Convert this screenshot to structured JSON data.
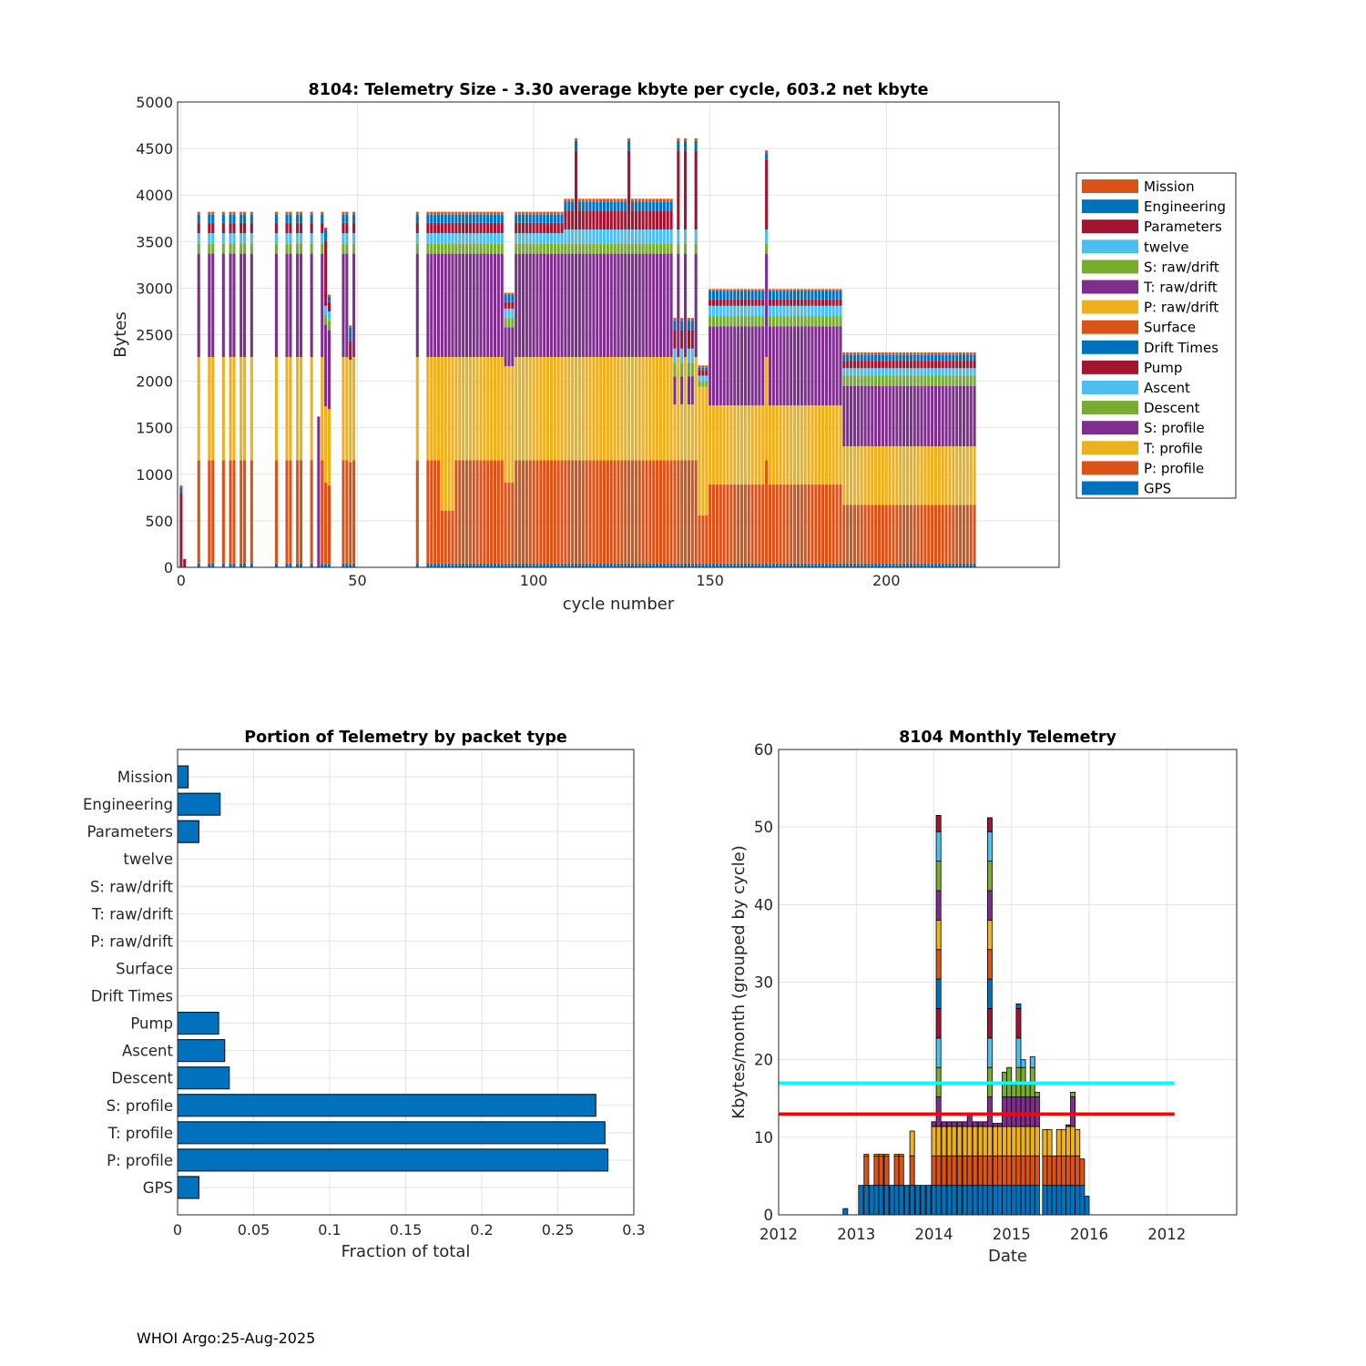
{
  "footer": "WHOI Argo:25-Aug-2025",
  "chart_data": [
    {
      "type": "bar",
      "stacked": true,
      "title": "8104: Telemetry Size - 3.30 average kbyte per cycle,  603.2 net kbyte",
      "xlabel": "cycle number",
      "ylabel": "Bytes",
      "xlim": [
        -1,
        249
      ],
      "ylim": [
        0,
        5000
      ],
      "xticks": [
        0,
        50,
        100,
        150,
        200
      ],
      "yticks": [
        0,
        500,
        1000,
        1500,
        2000,
        2500,
        3000,
        3500,
        4000,
        4500,
        5000
      ],
      "grid": true,
      "legend_position": "right",
      "legend": [
        "Mission",
        "Engineering",
        "Parameters",
        "twelve",
        "S: raw/drift",
        "T: raw/drift",
        "P: raw/drift",
        "Surface",
        "Drift Times",
        "Pump",
        "Ascent",
        "Descent",
        "S: profile",
        "T: profile",
        "P: profile",
        "GPS"
      ],
      "colors": {
        "GPS": "#0072bd",
        "P: profile": "#d95319",
        "T: profile": "#edb120",
        "S: profile": "#7e2f8e",
        "Descent": "#77ac30",
        "Ascent": "#4dbeee",
        "Pump": "#a2142f",
        "Engineering": "#0072bd",
        "Mission": "#d95319"
      },
      "segments": [
        {
          "cycles": [
            0
          ],
          "GPS": 0,
          "P: profile": 0,
          "T: profile": 0,
          "S: profile": 0,
          "Descent": 0,
          "Ascent": 0,
          "Pump": 800,
          "Engineering": 60,
          "Mission": 20
        },
        {
          "cycles": [
            1
          ],
          "GPS": 0,
          "P: profile": 0,
          "T: profile": 0,
          "S: profile": 0,
          "Descent": 0,
          "Ascent": 0,
          "Pump": 90,
          "Engineering": 0,
          "Mission": 0
        },
        {
          "cycles": [
            5,
            8,
            9,
            12,
            14,
            15,
            17,
            18,
            20,
            27,
            30,
            31,
            33,
            34,
            37,
            40,
            46,
            47,
            49,
            67
          ],
          "GPS": 40,
          "P: profile": 1110,
          "T: profile": 1110,
          "S: profile": 1110,
          "Descent": 110,
          "Ascent": 110,
          "Pump": 110,
          "Engineering": 90,
          "Mission": 30
        },
        {
          "cycles": [
            39
          ],
          "GPS": 0,
          "P: profile": 0,
          "T: profile": 0,
          "S: profile": 1620,
          "Descent": 0,
          "Ascent": 0,
          "Pump": 0,
          "Engineering": 0,
          "Mission": 0
        },
        {
          "cycles": [
            41
          ],
          "GPS": 30,
          "P: profile": 880,
          "T: profile": 820,
          "S: profile": 880,
          "Descent": 100,
          "Ascent": 100,
          "Pump": 700,
          "Engineering": 120,
          "Mission": 20
        },
        {
          "cycles": [
            42
          ],
          "GPS": 30,
          "P: profile": 850,
          "T: profile": 820,
          "S: profile": 850,
          "Descent": 100,
          "Ascent": 100,
          "Pump": 100,
          "Engineering": 60,
          "Mission": 20
        },
        {
          "cycles": [
            48
          ],
          "GPS": 30,
          "P: profile": 1100,
          "T: profile": 1100,
          "S: profile": 0,
          "Descent": 0,
          "Ascent": 0,
          "Pump": 200,
          "Engineering": 150,
          "Mission": 20
        },
        {
          "cycles": [
            70,
            71,
            72,
            73,
            78,
            79,
            80,
            81,
            82,
            83,
            84,
            85,
            86,
            87,
            88,
            89,
            90,
            91,
            95,
            96,
            97,
            98,
            99,
            100,
            101,
            102,
            103,
            104,
            105,
            106,
            107,
            108
          ],
          "GPS": 40,
          "P: profile": 1110,
          "T: profile": 1110,
          "S: profile": 1110,
          "Descent": 110,
          "Ascent": 110,
          "Pump": 110,
          "Engineering": 90,
          "Mission": 30
        },
        {
          "cycles": [
            74,
            75,
            76,
            77
          ],
          "GPS": 40,
          "P: profile": 570,
          "T: profile": 1650,
          "S: profile": 1110,
          "Descent": 110,
          "Ascent": 110,
          "Pump": 110,
          "Engineering": 90,
          "Mission": 30
        },
        {
          "cycles": [
            92,
            93,
            94
          ],
          "GPS": 40,
          "P: profile": 870,
          "T: profile": 1250,
          "S: profile": 420,
          "Descent": 100,
          "Ascent": 100,
          "Pump": 70,
          "Engineering": 80,
          "Mission": 20
        },
        {
          "cycles": [
            109,
            110,
            111,
            113,
            114,
            115,
            116,
            117,
            118,
            119,
            120,
            121,
            122,
            123,
            124,
            125,
            126,
            128,
            129,
            130,
            131,
            132,
            133,
            134,
            135,
            136,
            137,
            138,
            139
          ],
          "GPS": 40,
          "P: profile": 1110,
          "T: profile": 1110,
          "S: profile": 1110,
          "Descent": 110,
          "Ascent": 150,
          "Pump": 200,
          "Engineering": 100,
          "Mission": 30
        },
        {
          "cycles": [
            112,
            127,
            141,
            143,
            146
          ],
          "GPS": 40,
          "P: profile": 1110,
          "T: profile": 1110,
          "S: profile": 1110,
          "Descent": 110,
          "Ascent": 150,
          "Pump": 850,
          "Engineering": 100,
          "Mission": 30
        },
        {
          "cycles": [
            140,
            142,
            144,
            145
          ],
          "GPS": 40,
          "P: profile": 1110,
          "T: profile": 600,
          "S: profile": 300,
          "Descent": 150,
          "Ascent": 150,
          "Pump": 200,
          "Engineering": 100,
          "Mission": 30
        },
        {
          "cycles": [
            147,
            148,
            149
          ],
          "GPS": 40,
          "P: profile": 520,
          "T: profile": 1380,
          "S: profile": 0,
          "Descent": 60,
          "Ascent": 60,
          "Pump": 60,
          "Engineering": 30,
          "Mission": 20
        },
        {
          "cycles": [
            150,
            151,
            152,
            153,
            154,
            155,
            156,
            157,
            158,
            159,
            160,
            161,
            162,
            163,
            164,
            165,
            167,
            168,
            169,
            170,
            171,
            172,
            173,
            174,
            175,
            176,
            177,
            178,
            179,
            180,
            181,
            182,
            183,
            184,
            185,
            186,
            187
          ],
          "GPS": 40,
          "P: profile": 850,
          "T: profile": 850,
          "S: profile": 850,
          "Descent": 110,
          "Ascent": 110,
          "Pump": 70,
          "Engineering": 90,
          "Mission": 20
        },
        {
          "cycles": [
            166
          ],
          "GPS": 40,
          "P: profile": 1110,
          "T: profile": 1110,
          "S: profile": 1110,
          "Descent": 110,
          "Ascent": 150,
          "Pump": 750,
          "Engineering": 70,
          "Mission": 30
        },
        {
          "cycles": [
            188,
            189,
            190,
            191,
            192,
            193,
            194,
            195,
            196,
            197,
            198,
            199,
            200,
            201,
            202,
            203,
            204,
            205,
            206,
            207,
            208,
            209,
            210,
            211,
            212,
            213,
            214,
            215,
            216,
            217,
            218,
            219,
            220,
            221,
            222,
            223,
            224,
            225
          ],
          "GPS": 40,
          "P: profile": 630,
          "T: profile": 630,
          "S: profile": 650,
          "Descent": 110,
          "Ascent": 80,
          "Pump": 80,
          "Engineering": 60,
          "Mission": 30
        }
      ]
    },
    {
      "type": "bar",
      "orientation": "horizontal",
      "title": "Portion of Telemetry by packet type",
      "xlabel": "Fraction of total",
      "xlim": [
        0,
        0.3
      ],
      "xticks": [
        0,
        0.05,
        0.1,
        0.15,
        0.2,
        0.25,
        0.3
      ],
      "xtick_labels": [
        "0",
        "0.05",
        "0.1",
        "0.15",
        "0.2",
        "0.25",
        "0.3"
      ],
      "grid": true,
      "color": "#0072bd",
      "categories": [
        "Mission",
        "Engineering",
        "Parameters",
        "twelve",
        "S: raw/drift",
        "T: raw/drift",
        "P: raw/drift",
        "Surface",
        "Drift Times",
        "Pump",
        "Ascent",
        "Descent",
        "S: profile",
        "T: profile",
        "P: profile",
        "GPS"
      ],
      "values": [
        0.007,
        0.028,
        0.014,
        0,
        0,
        0,
        0,
        0,
        0,
        0.027,
        0.031,
        0.034,
        0.275,
        0.281,
        0.283,
        0.014
      ]
    },
    {
      "type": "bar",
      "stacked": true,
      "title": "8104 Monthly Telemetry",
      "xlabel": "Date",
      "ylabel": "Kbytes/month (grouped by cycle)",
      "ylim": [
        0,
        60
      ],
      "yticks": [
        0,
        10,
        20,
        30,
        40,
        50,
        60
      ],
      "xtick_labels": [
        "2012",
        "2013",
        "2014",
        "2015",
        "2016",
        "2012"
      ],
      "xtick_months": [
        0,
        10,
        20,
        30,
        40,
        50
      ],
      "xlim_months": [
        0,
        59
      ],
      "grid": true,
      "reference_lines": [
        {
          "label": "cyan",
          "value": 17,
          "color": "#00ffff",
          "from_month": 0,
          "to_month": 51
        },
        {
          "label": "red",
          "value": 13,
          "color": "#ff0000",
          "from_month": 0,
          "to_month": 51
        }
      ],
      "palette": [
        "#0072bd",
        "#d95319",
        "#edb120",
        "#7e2f8e",
        "#77ac30",
        "#4dbeee",
        "#a2142f"
      ],
      "stack_unit": 3.8,
      "months": [
        {
          "m": 8.6,
          "total": 0.8
        },
        {
          "m": 10.6,
          "total": 3.8
        },
        {
          "m": 11.3,
          "total": 7.8
        },
        {
          "m": 12.0,
          "total": 3.8
        },
        {
          "m": 12.6,
          "total": 7.8
        },
        {
          "m": 13.2,
          "total": 7.8
        },
        {
          "m": 13.9,
          "total": 7.8
        },
        {
          "m": 14.6,
          "total": 3.8
        },
        {
          "m": 15.2,
          "total": 7.8
        },
        {
          "m": 15.8,
          "total": 7.8
        },
        {
          "m": 16.5,
          "total": 3.8
        },
        {
          "m": 17.2,
          "total": 10.8
        },
        {
          "m": 17.9,
          "total": 3.8
        },
        {
          "m": 18.6,
          "total": 3.8
        },
        {
          "m": 19.3,
          "total": 3.8
        },
        {
          "m": 20.0,
          "total": 12.0
        },
        {
          "m": 20.6,
          "total": 51.5
        },
        {
          "m": 21.3,
          "total": 12.0
        },
        {
          "m": 22.0,
          "total": 12.0
        },
        {
          "m": 22.6,
          "total": 12.0
        },
        {
          "m": 23.3,
          "total": 12.0
        },
        {
          "m": 24.0,
          "total": 12.0
        },
        {
          "m": 24.6,
          "total": 13.0
        },
        {
          "m": 25.3,
          "total": 12.0
        },
        {
          "m": 26.0,
          "total": 12.0
        },
        {
          "m": 26.6,
          "total": 12.0
        },
        {
          "m": 27.2,
          "total": 51.2
        },
        {
          "m": 27.9,
          "total": 11.8
        },
        {
          "m": 28.5,
          "total": 11.8
        },
        {
          "m": 29.1,
          "total": 18.4
        },
        {
          "m": 29.7,
          "total": 19.0
        },
        {
          "m": 30.3,
          "total": 16.8
        },
        {
          "m": 30.9,
          "total": 27.2
        },
        {
          "m": 31.5,
          "total": 20.0
        },
        {
          "m": 32.1,
          "total": 17.0
        },
        {
          "m": 32.7,
          "total": 20.4
        },
        {
          "m": 33.3,
          "total": 15.8
        },
        {
          "m": 34.3,
          "total": 11.0
        },
        {
          "m": 34.9,
          "total": 11.0
        },
        {
          "m": 35.5,
          "total": 7.6
        },
        {
          "m": 36.1,
          "total": 11.0
        },
        {
          "m": 36.7,
          "total": 11.0
        },
        {
          "m": 37.3,
          "total": 11.6
        },
        {
          "m": 37.9,
          "total": 15.8
        },
        {
          "m": 38.5,
          "total": 11.0
        },
        {
          "m": 39.1,
          "total": 7.2
        },
        {
          "m": 39.7,
          "total": 2.4
        }
      ]
    }
  ]
}
